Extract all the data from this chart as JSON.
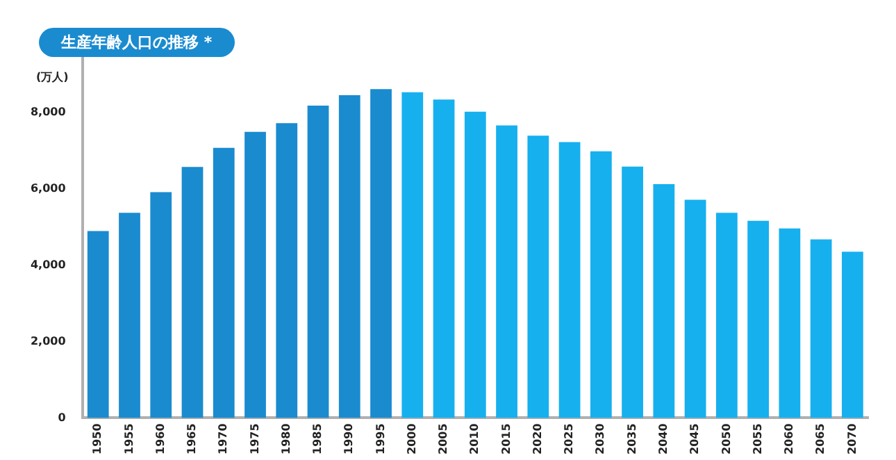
{
  "chart_data": {
    "type": "bar",
    "title": "生産年齢人口の推移 *",
    "ylabel": "(万人)",
    "categories": [
      "1950",
      "1955",
      "1960",
      "1965",
      "1970",
      "1975",
      "1980",
      "1985",
      "1990",
      "1995",
      "2000",
      "2005",
      "2010",
      "2015",
      "2020",
      "2025",
      "2030",
      "2035",
      "2040",
      "2045",
      "2050",
      "2055",
      "2060",
      "2065",
      "2070"
    ],
    "values": [
      4900,
      5380,
      5920,
      6580,
      7080,
      7500,
      7730,
      8190,
      8460,
      8620,
      8540,
      8350,
      8030,
      7670,
      7400,
      7230,
      6990,
      6590,
      6130,
      5720,
      5380,
      5170,
      4970,
      4680,
      4360
    ],
    "colors": [
      "#1a8bcf",
      "#1a8bcf",
      "#1a8bcf",
      "#1a8bcf",
      "#1a8bcf",
      "#1a8bcf",
      "#1a8bcf",
      "#1a8bcf",
      "#1a8bcf",
      "#1a8bcf",
      "#16b0ef",
      "#16b0ef",
      "#16b0ef",
      "#16b0ef",
      "#16b0ef",
      "#16b0ef",
      "#16b0ef",
      "#16b0ef",
      "#16b0ef",
      "#16b0ef",
      "#16b0ef",
      "#16b0ef",
      "#16b0ef",
      "#16b0ef",
      "#16b0ef"
    ],
    "ylim": [
      0,
      9500
    ],
    "yticks": [
      0,
      {
        "value": 2000,
        "label": "2,000"
      },
      {
        "value": 4000,
        "label": "4,000"
      },
      {
        "value": 6000,
        "label": "6,000"
      },
      {
        "value": 8000,
        "label": "8,000"
      }
    ],
    "grid": false,
    "legend": false
  }
}
